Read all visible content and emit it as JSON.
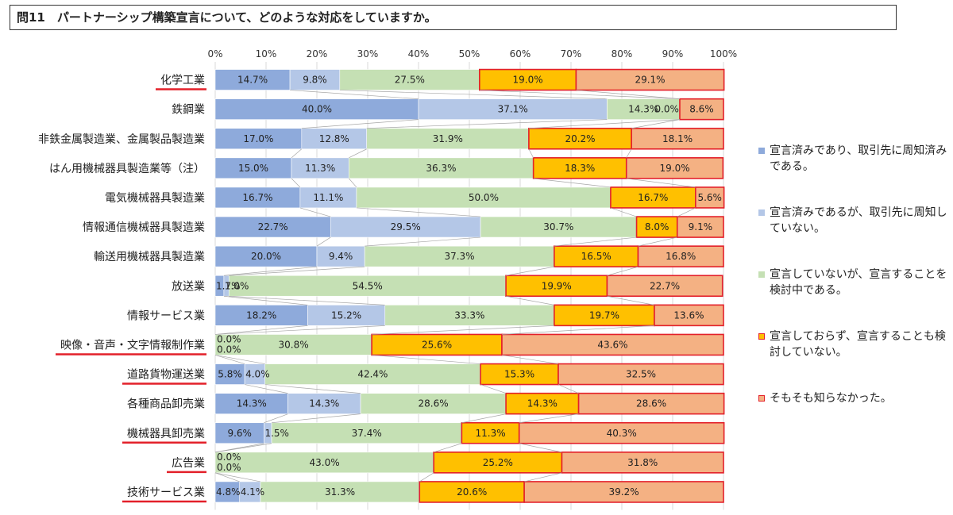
{
  "question": "問11　パートナーシップ構築宣言について、どのような対応をしていますか。",
  "chart_data": {
    "type": "bar",
    "orientation": "horizontal",
    "stacked": "percent",
    "x_ticks": [
      "0%",
      "10%",
      "20%",
      "30%",
      "40%",
      "50%",
      "60%",
      "70%",
      "80%",
      "90%",
      "100%"
    ],
    "xlim": [
      0,
      100
    ],
    "grid": true,
    "legend_position": "right",
    "categories": [
      "化学工業",
      "鉄鋼業",
      "非鉄金属製造業、金属製品製造業",
      "はん用機械器具製造業等（注）",
      "電気機械器具製造業",
      "情報通信機械器具製造業",
      "輸送用機械器具製造業",
      "放送業",
      "情報サービス業",
      "映像・音声・文字情報制作業",
      "道路貨物運送業",
      "各種商品卸売業",
      "機械器具卸売業",
      "広告業",
      "技術サービス業"
    ],
    "underlined_categories": [
      "化学工業",
      "映像・音声・文字情報制作業",
      "道路貨物運送業",
      "機械器具卸売業",
      "広告業",
      "技術サービス業"
    ],
    "series": [
      {
        "name": "宣言済みであり、取引先に周知済みである。",
        "color": "#8eaadb",
        "border": "#8eaadb",
        "values": [
          14.7,
          40.0,
          17.0,
          15.0,
          16.7,
          22.7,
          20.0,
          1.7,
          18.2,
          0.0,
          5.8,
          14.3,
          9.6,
          0.0,
          4.8
        ]
      },
      {
        "name": "宣言済みであるが、取引先に周知していない。",
        "color": "#b4c7e7",
        "border": "#b4c7e7",
        "values": [
          9.8,
          37.1,
          12.8,
          11.3,
          11.1,
          29.5,
          9.4,
          1.0,
          15.2,
          0.0,
          4.0,
          14.3,
          1.5,
          0.0,
          4.1
        ]
      },
      {
        "name": "宣言していないが、宣言することを検討中である。",
        "color": "#c5e0b4",
        "border": "#c5e0b4",
        "values": [
          27.5,
          14.3,
          31.9,
          36.3,
          50.0,
          30.7,
          37.3,
          54.5,
          33.3,
          30.8,
          42.4,
          28.6,
          37.4,
          43.0,
          31.3
        ]
      },
      {
        "name": "宣言しておらず、宣言することも検討していない。",
        "color": "#ffc000",
        "border": "#e3202a",
        "values": [
          19.0,
          0.0,
          20.2,
          18.3,
          16.7,
          8.0,
          16.5,
          19.9,
          19.7,
          25.6,
          15.3,
          14.3,
          11.3,
          25.2,
          20.6
        ]
      },
      {
        "name": "そもそも知らなかった。",
        "color": "#f4b183",
        "border": "#e3202a",
        "values": [
          29.1,
          8.6,
          18.1,
          19.0,
          5.6,
          9.1,
          16.8,
          22.7,
          13.6,
          43.6,
          32.5,
          28.6,
          40.3,
          31.8,
          39.2
        ]
      }
    ]
  }
}
